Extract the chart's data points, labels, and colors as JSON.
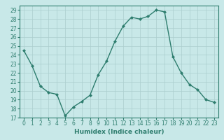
{
  "x": [
    0,
    1,
    2,
    3,
    4,
    5,
    6,
    7,
    8,
    9,
    10,
    11,
    12,
    13,
    14,
    15,
    16,
    17,
    18,
    19,
    20,
    21,
    22,
    23
  ],
  "y": [
    24.5,
    22.8,
    20.5,
    19.8,
    19.6,
    17.2,
    18.2,
    18.8,
    19.5,
    21.8,
    23.3,
    25.5,
    27.2,
    28.2,
    28.0,
    28.3,
    29.0,
    28.8,
    23.8,
    22.0,
    20.7,
    20.1,
    19.0,
    18.7
  ],
  "line_color": "#2e7d6e",
  "marker": "D",
  "marker_size": 2.0,
  "linewidth": 1.0,
  "xlabel": "Humidex (Indice chaleur)",
  "xlim": [
    -0.5,
    23.5
  ],
  "ylim": [
    17,
    29.5
  ],
  "yticks": [
    17,
    18,
    19,
    20,
    21,
    22,
    23,
    24,
    25,
    26,
    27,
    28,
    29
  ],
  "xtick_labels": [
    "0",
    "1",
    "2",
    "3",
    "4",
    "5",
    "6",
    "7",
    "8",
    "9",
    "10",
    "11",
    "12",
    "13",
    "14",
    "15",
    "16",
    "17",
    "18",
    "19",
    "20",
    "21",
    "22",
    "23"
  ],
  "background_color": "#c8e8e8",
  "grid_color": "#aacece",
  "xlabel_fontsize": 6.5,
  "tick_fontsize": 5.5
}
